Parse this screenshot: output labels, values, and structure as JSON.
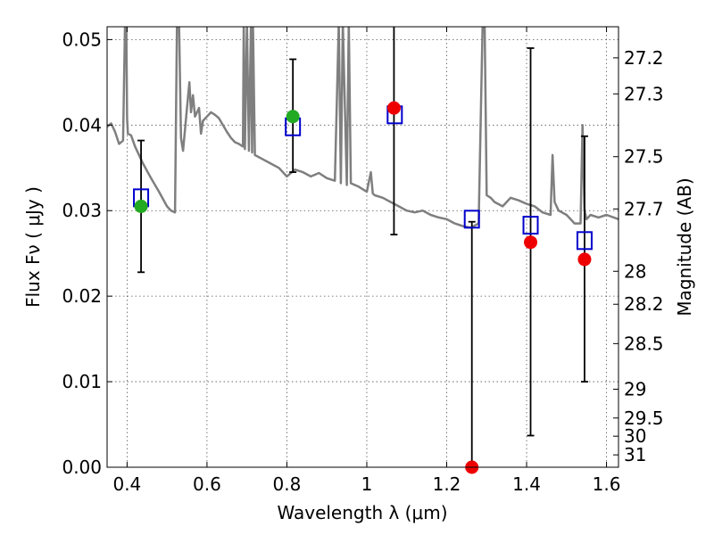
{
  "chart_data": {
    "type": "scatter",
    "title": "",
    "xlabel": "Wavelength  λ (μm)",
    "ylabel": "Flux  Fν  ( μJy )",
    "ylabel_right": "Magnitude (AB)",
    "xlim": [
      0.35,
      1.63
    ],
    "ylim": [
      0.0,
      0.0515
    ],
    "grid": true,
    "x_ticks": [
      0.4,
      0.6,
      0.8,
      1.0,
      1.2,
      1.4,
      1.6
    ],
    "x_tick_labels": [
      "0.4",
      "0.6",
      "0.8",
      "1",
      "1.2",
      "1.4",
      "1.6"
    ],
    "y_ticks": [
      0.0,
      0.01,
      0.02,
      0.03,
      0.04,
      0.05
    ],
    "y_tick_labels": [
      "0.00",
      "0.01",
      "0.02",
      "0.03",
      "0.04",
      "0.05"
    ],
    "right_ticks": [
      {
        "label": "27.2",
        "mag": 27.2
      },
      {
        "label": "27.3",
        "mag": 27.3
      },
      {
        "label": "27.5",
        "mag": 27.5
      },
      {
        "label": "27.7",
        "mag": 27.7
      },
      {
        "label": "28",
        "mag": 28.0
      },
      {
        "label": "28.2",
        "mag": 28.2
      },
      {
        "label": "28.5",
        "mag": 28.5
      },
      {
        "label": "29",
        "mag": 29.0
      },
      {
        "label": "29.5",
        "mag": 29.5
      },
      {
        "label": "30",
        "mag": 30.0
      },
      {
        "label": "31",
        "mag": 31.0
      }
    ],
    "spectrum": {
      "color": "#7f7f7f",
      "x": [
        0.35,
        0.36,
        0.37,
        0.38,
        0.39,
        0.395,
        0.398,
        0.4,
        0.402,
        0.41,
        0.42,
        0.44,
        0.46,
        0.48,
        0.5,
        0.51,
        0.52,
        0.525,
        0.53,
        0.535,
        0.54,
        0.55,
        0.556,
        0.56,
        0.565,
        0.57,
        0.58,
        0.585,
        0.59,
        0.6,
        0.61,
        0.62,
        0.63,
        0.64,
        0.65,
        0.66,
        0.67,
        0.68,
        0.69,
        0.692,
        0.695,
        0.7,
        0.705,
        0.71,
        0.713,
        0.715,
        0.72,
        0.74,
        0.76,
        0.78,
        0.8,
        0.82,
        0.84,
        0.86,
        0.88,
        0.9,
        0.92,
        0.93,
        0.935,
        0.94,
        0.95,
        0.955,
        0.96,
        0.98,
        1.0,
        1.01,
        1.015,
        1.02,
        1.04,
        1.06,
        1.08,
        1.1,
        1.12,
        1.14,
        1.16,
        1.18,
        1.2,
        1.22,
        1.24,
        1.26,
        1.28,
        1.29,
        1.295,
        1.3,
        1.31,
        1.32,
        1.34,
        1.36,
        1.38,
        1.4,
        1.42,
        1.44,
        1.46,
        1.465,
        1.47,
        1.48,
        1.5,
        1.52,
        1.535,
        1.54,
        1.545,
        1.55,
        1.56,
        1.58,
        1.6,
        1.63
      ],
      "y": [
        0.0398,
        0.0402,
        0.0392,
        0.0378,
        0.0382,
        0.052,
        0.052,
        0.0408,
        0.039,
        0.0388,
        0.0375,
        0.0355,
        0.0338,
        0.0322,
        0.0305,
        0.03,
        0.0298,
        0.052,
        0.052,
        0.0385,
        0.037,
        0.042,
        0.045,
        0.0415,
        0.0435,
        0.041,
        0.042,
        0.039,
        0.0405,
        0.041,
        0.0415,
        0.0412,
        0.0408,
        0.04,
        0.0392,
        0.0385,
        0.038,
        0.0378,
        0.0375,
        0.052,
        0.0372,
        0.052,
        0.037,
        0.052,
        0.0368,
        0.052,
        0.0365,
        0.036,
        0.0355,
        0.035,
        0.034,
        0.0348,
        0.0345,
        0.034,
        0.0344,
        0.0338,
        0.0335,
        0.052,
        0.0332,
        0.052,
        0.033,
        0.052,
        0.0332,
        0.0328,
        0.0322,
        0.0345,
        0.032,
        0.0318,
        0.0315,
        0.031,
        0.0305,
        0.03,
        0.0298,
        0.03,
        0.0295,
        0.0292,
        0.029,
        0.0285,
        0.0282,
        0.028,
        0.0285,
        0.052,
        0.052,
        0.0318,
        0.0315,
        0.031,
        0.0305,
        0.0315,
        0.0312,
        0.0308,
        0.0305,
        0.0298,
        0.0295,
        0.0365,
        0.031,
        0.03,
        0.0295,
        0.0285,
        0.0285,
        0.04,
        0.03,
        0.029,
        0.0295,
        0.0292,
        0.0295,
        0.029
      ]
    },
    "model_points": {
      "color": "#0000cc",
      "marker": "open-square",
      "x": [
        0.435,
        0.815,
        1.07,
        1.263,
        1.41,
        1.545
      ],
      "y": [
        0.0315,
        0.0398,
        0.0412,
        0.029,
        0.0283,
        0.0265
      ]
    },
    "green_points": {
      "color": "#22aa22",
      "x": [
        0.435,
        0.815
      ],
      "y": [
        0.0305,
        0.041
      ]
    },
    "red_points": {
      "color": "#ee0000",
      "x": [
        1.068,
        1.263,
        1.41,
        1.545
      ],
      "y": [
        0.042,
        0.0,
        0.0263,
        0.0243
      ]
    },
    "error_bars": {
      "color": "#000000",
      "x": [
        0.435,
        0.815,
        1.068,
        1.263,
        1.41,
        1.545
      ],
      "low": [
        0.0228,
        0.0345,
        0.0272,
        0.0,
        0.0037,
        0.01
      ],
      "high": [
        0.0382,
        0.0477,
        0.052,
        0.0287,
        0.049,
        0.0387
      ]
    }
  }
}
